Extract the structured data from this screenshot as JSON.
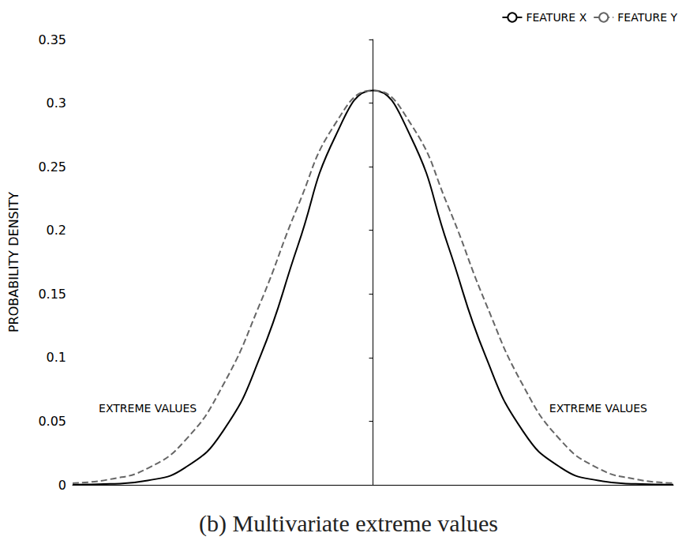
{
  "chart_data": {
    "type": "line",
    "title": "(b) Multivariate extreme values",
    "y_label": "PROBABILITY DENSITY",
    "x": [
      -4,
      -3.5,
      -3,
      -2.5,
      -2,
      -1.5,
      -1,
      -0.5,
      0,
      0.5,
      1,
      1.5,
      2,
      2.5,
      3,
      3.5,
      4
    ],
    "series": [
      {
        "name": "FEATURE X",
        "color": "#000000",
        "line_style": "solid",
        "values": [
          0.0001,
          0.0007,
          0.0034,
          0.0136,
          0.042,
          0.101,
          0.188,
          0.274,
          0.31,
          0.274,
          0.188,
          0.101,
          0.042,
          0.0136,
          0.0034,
          0.0007,
          0.0001
        ]
      },
      {
        "name": "FEATURE Y",
        "color": "#666666",
        "line_style": "dashed",
        "values": [
          0.0013,
          0.0044,
          0.013,
          0.035,
          0.078,
          0.143,
          0.219,
          0.284,
          0.31,
          0.284,
          0.219,
          0.143,
          0.078,
          0.035,
          0.013,
          0.0044,
          0.0013
        ]
      }
    ],
    "annotations": [
      {
        "text": "EXTREME VALUES",
        "x": -3,
        "y": 0.06
      },
      {
        "text": "EXTREME VALUES",
        "x": 3,
        "y": 0.06
      }
    ],
    "xlim": [
      -4,
      4
    ],
    "ylim": [
      0,
      0.35
    ],
    "yticks": [
      0,
      0.05,
      0.1,
      0.15,
      0.2,
      0.25,
      0.3,
      0.35
    ],
    "tick_labels": "y",
    "grid": false,
    "legend": "top-right"
  }
}
